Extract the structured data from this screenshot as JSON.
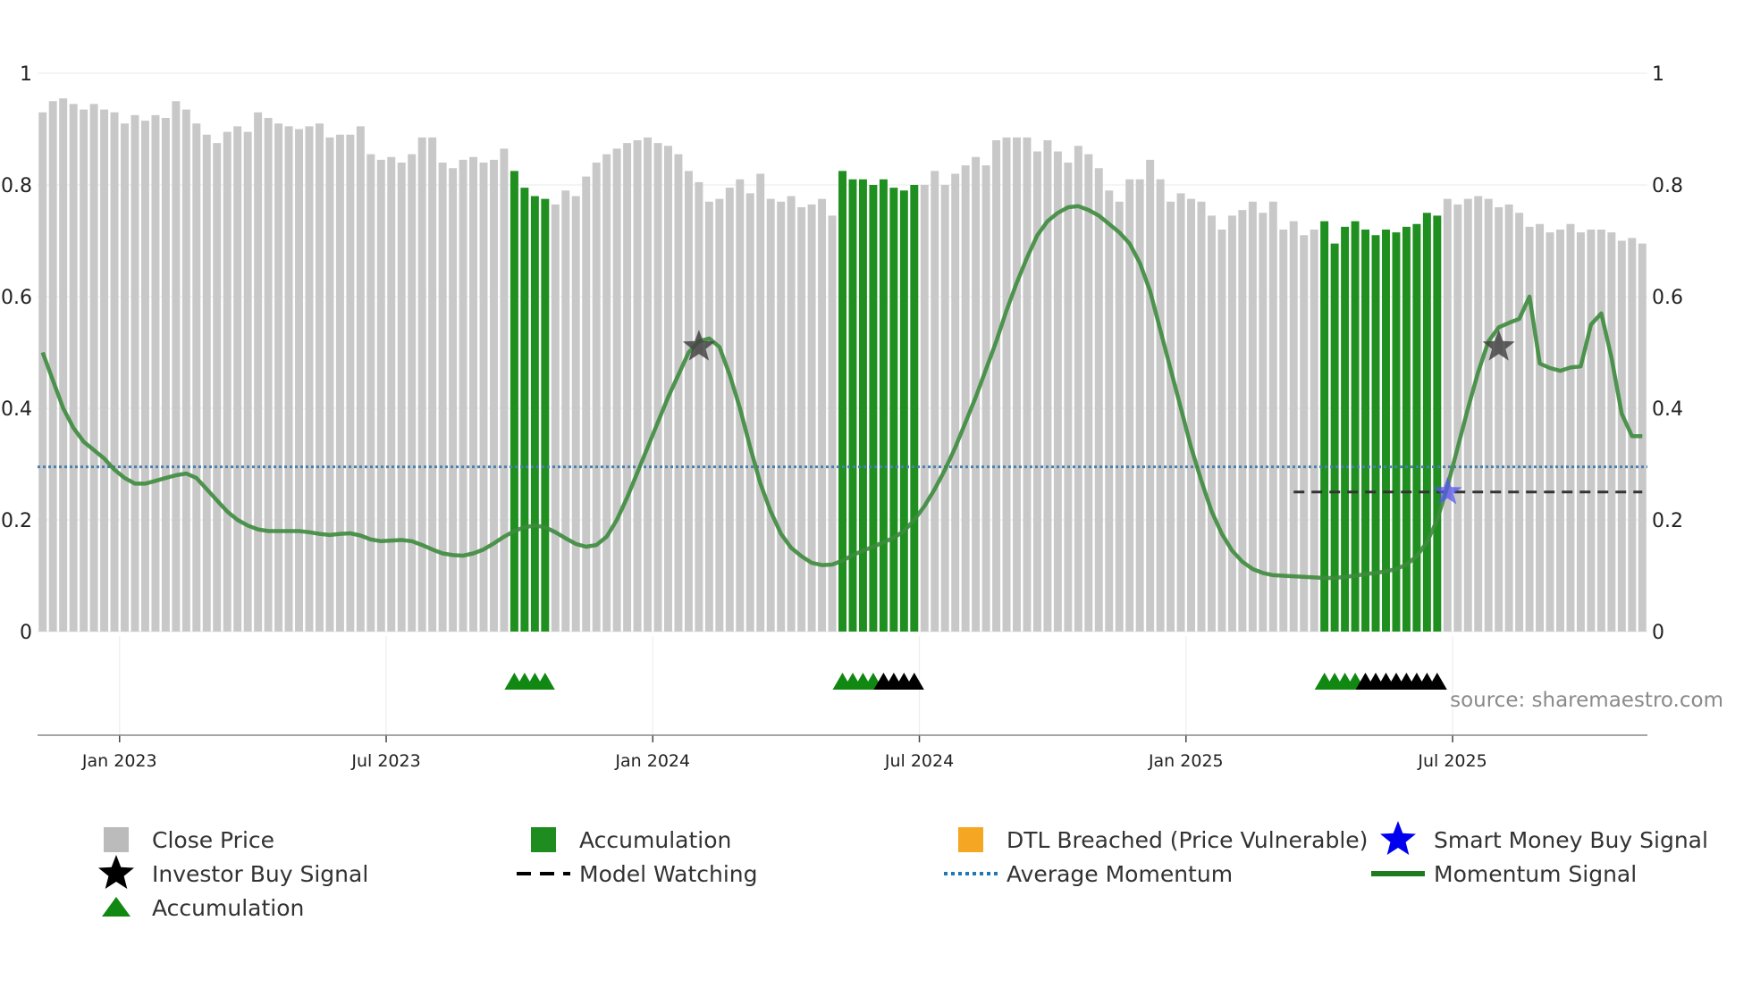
{
  "chart_data": {
    "type": "bar",
    "x_ticks": [
      "Jan 2023",
      "Jul 2023",
      "Jan 2024",
      "Jul 2024",
      "Jan 2025",
      "Jul 2025"
    ],
    "y_ticks": [
      "0",
      "0.2",
      "0.4",
      "0.6",
      "0.8",
      "1"
    ],
    "ylim": [
      0,
      1
    ],
    "source_text": "source: sharemaestro.com",
    "average_momentum": 0.295,
    "model_watching_level": 0.25,
    "close_price": [
      0.93,
      0.95,
      0.955,
      0.945,
      0.935,
      0.945,
      0.935,
      0.93,
      0.91,
      0.925,
      0.915,
      0.925,
      0.92,
      0.95,
      0.935,
      0.91,
      0.89,
      0.875,
      0.895,
      0.905,
      0.895,
      0.93,
      0.92,
      0.91,
      0.905,
      0.9,
      0.905,
      0.91,
      0.885,
      0.89,
      0.89,
      0.905,
      0.855,
      0.845,
      0.85,
      0.84,
      0.855,
      0.885,
      0.885,
      0.84,
      0.83,
      0.845,
      0.85,
      0.84,
      0.845,
      0.865,
      0.825,
      0.795,
      0.78,
      0.775,
      0.765,
      0.79,
      0.78,
      0.815,
      0.84,
      0.855,
      0.865,
      0.875,
      0.88,
      0.885,
      0.875,
      0.87,
      0.855,
      0.825,
      0.805,
      0.77,
      0.775,
      0.795,
      0.81,
      0.785,
      0.82,
      0.775,
      0.77,
      0.78,
      0.76,
      0.765,
      0.775,
      0.745,
      0.825,
      0.81,
      0.81,
      0.8,
      0.81,
      0.795,
      0.79,
      0.8,
      0.8,
      0.825,
      0.8,
      0.82,
      0.835,
      0.85,
      0.835,
      0.88,
      0.885,
      0.885,
      0.885,
      0.86,
      0.88,
      0.86,
      0.84,
      0.87,
      0.855,
      0.83,
      0.79,
      0.77,
      0.81,
      0.81,
      0.845,
      0.81,
      0.77,
      0.785,
      0.775,
      0.77,
      0.745,
      0.72,
      0.745,
      0.755,
      0.77,
      0.75,
      0.77,
      0.72,
      0.735,
      0.71,
      0.72,
      0.735,
      0.695,
      0.725,
      0.735,
      0.72,
      0.71,
      0.72,
      0.715,
      0.725,
      0.73,
      0.75,
      0.745,
      0.775,
      0.765,
      0.775,
      0.78,
      0.775,
      0.76,
      0.765,
      0.75,
      0.725,
      0.73,
      0.715,
      0.72,
      0.73,
      0.715,
      0.72,
      0.72,
      0.715,
      0.7,
      0.705,
      0.695
    ],
    "accumulation_ranges": [
      [
        46,
        49
      ],
      [
        78,
        85
      ],
      [
        125,
        136
      ]
    ],
    "momentum_signal": [
      [
        0,
        0.5
      ],
      [
        1,
        0.45
      ],
      [
        2,
        0.4
      ],
      [
        3,
        0.365
      ],
      [
        4,
        0.34
      ],
      [
        5,
        0.325
      ],
      [
        6,
        0.31
      ],
      [
        7,
        0.29
      ],
      [
        8,
        0.275
      ],
      [
        9,
        0.265
      ],
      [
        10,
        0.265
      ],
      [
        11,
        0.27
      ],
      [
        12,
        0.275
      ],
      [
        13,
        0.28
      ],
      [
        14,
        0.283
      ],
      [
        15,
        0.275
      ],
      [
        16,
        0.255
      ],
      [
        17,
        0.235
      ],
      [
        18,
        0.215
      ],
      [
        19,
        0.2
      ],
      [
        20,
        0.19
      ],
      [
        21,
        0.183
      ],
      [
        22,
        0.18
      ],
      [
        23,
        0.18
      ],
      [
        24,
        0.18
      ],
      [
        25,
        0.18
      ],
      [
        26,
        0.178
      ],
      [
        27,
        0.175
      ],
      [
        28,
        0.173
      ],
      [
        29,
        0.175
      ],
      [
        30,
        0.176
      ],
      [
        31,
        0.172
      ],
      [
        32,
        0.165
      ],
      [
        33,
        0.162
      ],
      [
        34,
        0.163
      ],
      [
        35,
        0.164
      ],
      [
        36,
        0.162
      ],
      [
        37,
        0.155
      ],
      [
        38,
        0.147
      ],
      [
        39,
        0.14
      ],
      [
        40,
        0.137
      ],
      [
        41,
        0.136
      ],
      [
        42,
        0.14
      ],
      [
        43,
        0.147
      ],
      [
        44,
        0.158
      ],
      [
        45,
        0.17
      ],
      [
        46,
        0.18
      ],
      [
        47,
        0.187
      ],
      [
        48,
        0.19
      ],
      [
        49,
        0.187
      ],
      [
        50,
        0.178
      ],
      [
        51,
        0.167
      ],
      [
        52,
        0.157
      ],
      [
        53,
        0.152
      ],
      [
        54,
        0.155
      ],
      [
        55,
        0.17
      ],
      [
        56,
        0.2
      ],
      [
        57,
        0.24
      ],
      [
        58,
        0.285
      ],
      [
        59,
        0.33
      ],
      [
        60,
        0.375
      ],
      [
        61,
        0.42
      ],
      [
        62,
        0.46
      ],
      [
        63,
        0.5
      ],
      [
        64,
        0.52
      ],
      [
        65,
        0.525
      ],
      [
        66,
        0.51
      ],
      [
        67,
        0.46
      ],
      [
        68,
        0.4
      ],
      [
        69,
        0.33
      ],
      [
        70,
        0.265
      ],
      [
        71,
        0.215
      ],
      [
        72,
        0.175
      ],
      [
        73,
        0.15
      ],
      [
        74,
        0.135
      ],
      [
        75,
        0.123
      ],
      [
        76,
        0.119
      ],
      [
        77,
        0.12
      ],
      [
        78,
        0.127
      ],
      [
        79,
        0.137
      ],
      [
        80,
        0.145
      ],
      [
        81,
        0.152
      ],
      [
        82,
        0.16
      ],
      [
        83,
        0.168
      ],
      [
        84,
        0.18
      ],
      [
        85,
        0.2
      ],
      [
        86,
        0.225
      ],
      [
        87,
        0.255
      ],
      [
        88,
        0.29
      ],
      [
        89,
        0.33
      ],
      [
        90,
        0.375
      ],
      [
        91,
        0.42
      ],
      [
        92,
        0.47
      ],
      [
        93,
        0.52
      ],
      [
        94,
        0.575
      ],
      [
        95,
        0.625
      ],
      [
        96,
        0.67
      ],
      [
        97,
        0.71
      ],
      [
        98,
        0.735
      ],
      [
        99,
        0.75
      ],
      [
        100,
        0.76
      ],
      [
        101,
        0.762
      ],
      [
        102,
        0.755
      ],
      [
        103,
        0.745
      ],
      [
        104,
        0.73
      ],
      [
        105,
        0.715
      ],
      [
        106,
        0.695
      ],
      [
        107,
        0.66
      ],
      [
        108,
        0.61
      ],
      [
        109,
        0.54
      ],
      [
        110,
        0.47
      ],
      [
        111,
        0.4
      ],
      [
        112,
        0.33
      ],
      [
        113,
        0.27
      ],
      [
        114,
        0.215
      ],
      [
        115,
        0.175
      ],
      [
        116,
        0.145
      ],
      [
        117,
        0.125
      ],
      [
        118,
        0.112
      ],
      [
        119,
        0.105
      ],
      [
        120,
        0.101
      ],
      [
        121,
        0.1
      ],
      [
        122,
        0.099
      ],
      [
        123,
        0.098
      ],
      [
        124,
        0.097
      ],
      [
        125,
        0.096
      ],
      [
        126,
        0.096
      ],
      [
        127,
        0.098
      ],
      [
        128,
        0.1
      ],
      [
        129,
        0.103
      ],
      [
        130,
        0.105
      ],
      [
        131,
        0.108
      ],
      [
        132,
        0.112
      ],
      [
        133,
        0.12
      ],
      [
        134,
        0.135
      ],
      [
        135,
        0.16
      ],
      [
        136,
        0.2
      ],
      [
        137,
        0.26
      ],
      [
        138,
        0.33
      ],
      [
        139,
        0.4
      ],
      [
        140,
        0.465
      ],
      [
        141,
        0.52
      ],
      [
        142,
        0.545
      ],
      [
        143,
        0.553
      ],
      [
        144,
        0.56
      ],
      [
        145,
        0.6
      ],
      [
        146,
        0.48
      ],
      [
        147,
        0.472
      ],
      [
        148,
        0.467
      ],
      [
        149,
        0.473
      ],
      [
        150,
        0.475
      ],
      [
        151,
        0.55
      ],
      [
        152,
        0.57
      ],
      [
        153,
        0.49
      ],
      [
        154,
        0.39
      ],
      [
        155,
        0.35
      ],
      [
        156,
        0.35
      ]
    ],
    "investor_buy_signals": [
      [
        64,
        0.51
      ],
      [
        142,
        0.51
      ]
    ],
    "smart_money_buy_signals": [
      [
        137,
        0.25
      ]
    ],
    "model_watching_range": [
      122,
      156
    ],
    "accumulation_markers": [
      46,
      47,
      48,
      49,
      78,
      79,
      80,
      81,
      125,
      126,
      127,
      128
    ],
    "investor_markers": [
      82,
      83,
      84,
      85,
      129,
      130,
      131,
      132,
      133,
      134,
      135,
      136
    ],
    "legend": [
      {
        "label": "Close Price",
        "color": "#bbbbbb",
        "kind": "square"
      },
      {
        "label": "Accumulation",
        "color": "#1e8c1e",
        "kind": "square"
      },
      {
        "label": "DTL Breached (Price Vulnerable)",
        "color": "#f5a623",
        "kind": "square"
      },
      {
        "label": "Smart Money Buy Signal",
        "color": "#0000ee",
        "kind": "star"
      },
      {
        "label": "Investor Buy Signal",
        "color": "#000000",
        "kind": "star"
      },
      {
        "label": "Model Watching",
        "color": "#000000",
        "kind": "dash"
      },
      {
        "label": "Average Momentum",
        "color": "#1f77b4",
        "kind": "dot"
      },
      {
        "label": "Momentum Signal",
        "color": "#1e7a1e",
        "kind": "line"
      },
      {
        "label": "Accumulation",
        "color": "#118811",
        "kind": "triangle"
      }
    ],
    "colors": {
      "close": "#c8c8c8",
      "accumulation": "#1f8f1f",
      "momentum": "#3d8b3d",
      "average": "#4a7fb0",
      "watch": "#333333",
      "grid": "#eeeeee"
    }
  }
}
